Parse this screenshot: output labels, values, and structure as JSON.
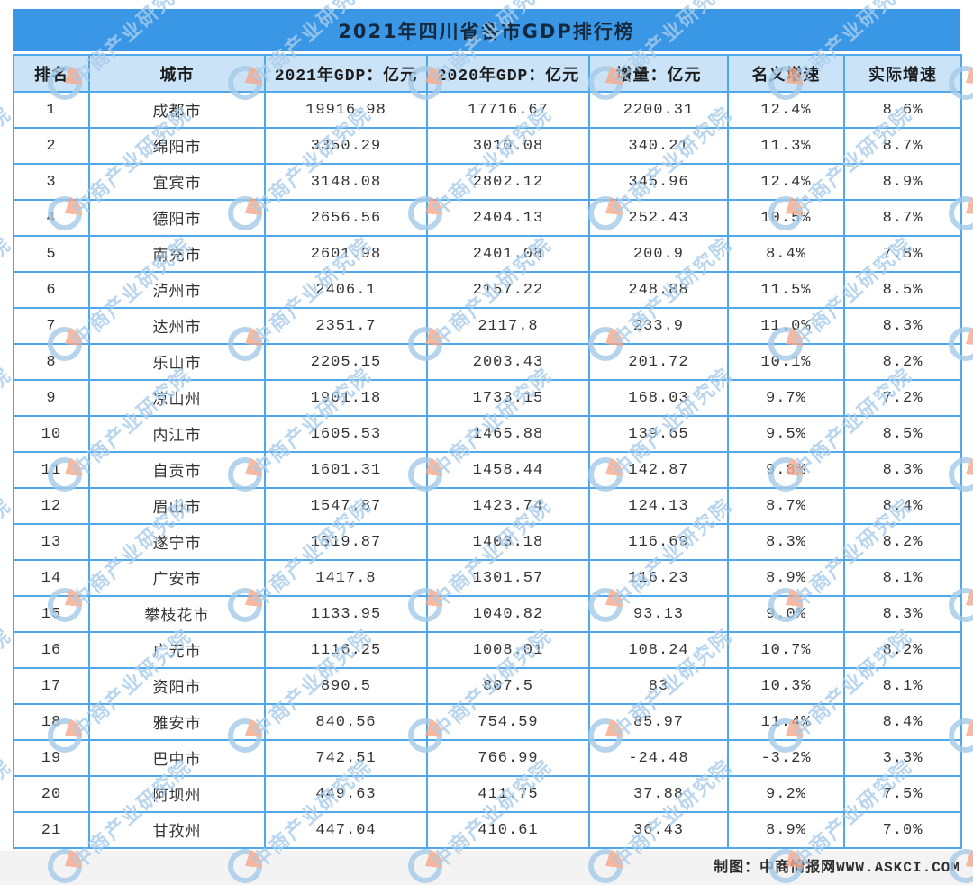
{
  "chart_data": {
    "type": "table",
    "title": "2021年四川省各市GDP排行榜",
    "columns": [
      "排名",
      "城市",
      "2021年GDP：亿元",
      "2020年GDP：亿元",
      "增量：亿元",
      "名义增速",
      "实际增速"
    ],
    "rows": [
      [
        "1",
        "成都市",
        "19916.98",
        "17716.67",
        "2200.31",
        "12.4%",
        "8.6%"
      ],
      [
        "2",
        "绵阳市",
        "3350.29",
        "3010.08",
        "340.21",
        "11.3%",
        "8.7%"
      ],
      [
        "3",
        "宜宾市",
        "3148.08",
        "2802.12",
        "345.96",
        "12.4%",
        "8.9%"
      ],
      [
        "4",
        "德阳市",
        "2656.56",
        "2404.13",
        "252.43",
        "10.5%",
        "8.7%"
      ],
      [
        "5",
        "南充市",
        "2601.98",
        "2401.08",
        "200.9",
        "8.4%",
        "7.8%"
      ],
      [
        "6",
        "泸州市",
        "2406.1",
        "2157.22",
        "248.88",
        "11.5%",
        "8.5%"
      ],
      [
        "7",
        "达州市",
        "2351.7",
        "2117.8",
        "233.9",
        "11.0%",
        "8.3%"
      ],
      [
        "8",
        "乐山市",
        "2205.15",
        "2003.43",
        "201.72",
        "10.1%",
        "8.2%"
      ],
      [
        "9",
        "凉山州",
        "1901.18",
        "1733.15",
        "168.03",
        "9.7%",
        "7.2%"
      ],
      [
        "10",
        "内江市",
        "1605.53",
        "1465.88",
        "139.65",
        "9.5%",
        "8.5%"
      ],
      [
        "11",
        "自贡市",
        "1601.31",
        "1458.44",
        "142.87",
        "9.8%",
        "8.3%"
      ],
      [
        "12",
        "眉山市",
        "1547.87",
        "1423.74",
        "124.13",
        "8.7%",
        "8.4%"
      ],
      [
        "13",
        "遂宁市",
        "1519.87",
        "1403.18",
        "116.69",
        "8.3%",
        "8.2%"
      ],
      [
        "14",
        "广安市",
        "1417.8",
        "1301.57",
        "116.23",
        "8.9%",
        "8.1%"
      ],
      [
        "15",
        "攀枝花市",
        "1133.95",
        "1040.82",
        "93.13",
        "9.0%",
        "8.3%"
      ],
      [
        "16",
        "广元市",
        "1116.25",
        "1008.01",
        "108.24",
        "10.7%",
        "8.2%"
      ],
      [
        "17",
        "资阳市",
        "890.5",
        "807.5",
        "83",
        "10.3%",
        "8.1%"
      ],
      [
        "18",
        "雅安市",
        "840.56",
        "754.59",
        "85.97",
        "11.4%",
        "8.4%"
      ],
      [
        "19",
        "巴中市",
        "742.51",
        "766.99",
        "-24.48",
        "-3.2%",
        "3.3%"
      ],
      [
        "20",
        "阿坝州",
        "449.63",
        "411.75",
        "37.88",
        "9.2%",
        "7.5%"
      ],
      [
        "21",
        "甘孜州",
        "447.04",
        "410.61",
        "36.43",
        "8.9%",
        "7.0%"
      ]
    ]
  },
  "footer": {
    "credit": "制图：中商情报网WWW.ASKCI.COM"
  },
  "watermark": {
    "text": "中商产业研究院",
    "logo": "askci-logo-icon"
  },
  "colors": {
    "title_bar_bg": "#3a97e6",
    "title_text": "#14293e",
    "header_bg": "#cbe3f7",
    "border_color": "#4fa8ec",
    "row_text": "#333333",
    "footer_bg": "#f3f3f3",
    "footer_text": "#2e2e2e",
    "wm_blue": "#a5cbe8",
    "wm_orange": "#f5a88b",
    "wm_text": "#a9cdeb"
  }
}
